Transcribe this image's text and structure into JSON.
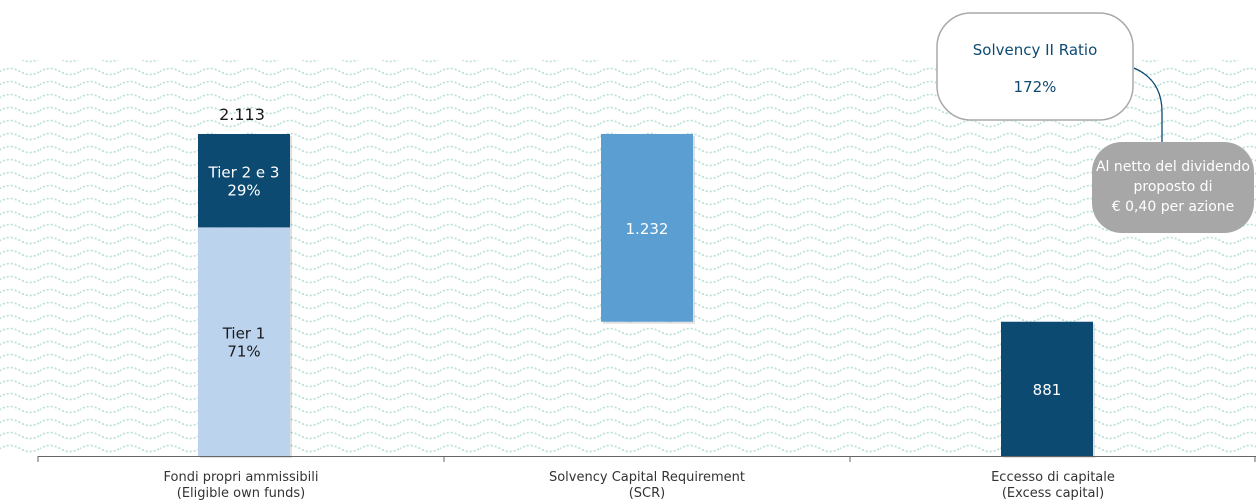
{
  "chart_data": {
    "type": "bar",
    "title": "",
    "xlabel": "",
    "ylabel": "",
    "ylim": [
      0,
      2113
    ],
    "grid": false,
    "categories": [
      {
        "line1": "Fondi propri ammissibili",
        "line2": "(Eligible own funds)"
      },
      {
        "line1": "Solvency Capital Requirement",
        "line2": "(SCR)"
      },
      {
        "line1": "Eccesso di capitale",
        "line2": "(Excess capital)"
      }
    ],
    "bars": [
      {
        "id": "eligible-own-funds",
        "category": 0,
        "base": 0,
        "total": 2113,
        "total_label": "2.113",
        "segments": [
          {
            "name": "Tier 1",
            "percent": "71%",
            "share": 0.71,
            "color": "#bcd3ee",
            "text_color": "#1a1a1a"
          },
          {
            "name": "Tier 2 e 3",
            "percent": "29%",
            "share": 0.29,
            "color": "#0d4a72",
            "text_color": "#ffffff"
          }
        ]
      },
      {
        "id": "scr",
        "category": 1,
        "base": 881,
        "value": 1232,
        "value_label": "1.232",
        "color": "#5b9fd2",
        "text_color": "#ffffff"
      },
      {
        "id": "excess-capital",
        "category": 2,
        "base": 0,
        "value": 881,
        "value_label": "881",
        "color": "#0d4a72",
        "text_color": "#ffffff"
      }
    ],
    "annotations": {
      "ratio_bubble": {
        "title": "Solvency II Ratio",
        "value": "172%",
        "text_color": "#0d4a72",
        "border_color": "#a9a9a9"
      },
      "note_bubble": {
        "lines": [
          "Al netto del dividendo",
          "proposto di",
          "€ 0,40 per azione"
        ],
        "fill": "#a7a7a7",
        "text_color": "#ffffff"
      },
      "connector_color": "#0d4a72"
    },
    "background_pattern_color": "#bfe1dc"
  }
}
